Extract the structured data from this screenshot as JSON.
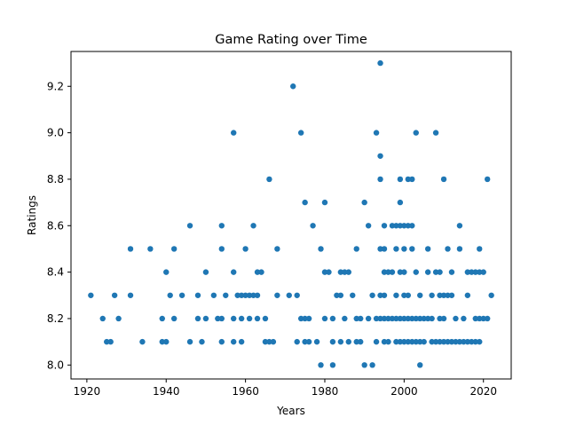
{
  "chart_data": {
    "type": "scatter",
    "title": "Game Rating over Time",
    "xlabel": "Years",
    "ylabel": "Ratings",
    "xlim": [
      1916,
      2027
    ],
    "ylim": [
      7.94,
      9.35
    ],
    "xticks": [
      1920,
      1940,
      1960,
      1980,
      2000,
      2020
    ],
    "yticks": [
      8.0,
      8.2,
      8.4,
      8.6,
      8.8,
      9.0,
      9.2
    ],
    "ytick_labels": [
      "8.0",
      "8.2",
      "8.4",
      "8.6",
      "8.8",
      "9.0",
      "9.2"
    ],
    "grid": false,
    "marker_color": "#1f77b4",
    "points": [
      [
        1921,
        8.3
      ],
      [
        1924,
        8.2
      ],
      [
        1925,
        8.1
      ],
      [
        1926,
        8.1
      ],
      [
        1927,
        8.3
      ],
      [
        1928,
        8.2
      ],
      [
        1931,
        8.5
      ],
      [
        1931,
        8.3
      ],
      [
        1934,
        8.1
      ],
      [
        1936,
        8.5
      ],
      [
        1939,
        8.2
      ],
      [
        1939,
        8.1
      ],
      [
        1940,
        8.1
      ],
      [
        1940,
        8.4
      ],
      [
        1941,
        8.3
      ],
      [
        1942,
        8.5
      ],
      [
        1942,
        8.2
      ],
      [
        1944,
        8.3
      ],
      [
        1946,
        8.6
      ],
      [
        1946,
        8.1
      ],
      [
        1948,
        8.3
      ],
      [
        1948,
        8.2
      ],
      [
        1949,
        8.1
      ],
      [
        1950,
        8.4
      ],
      [
        1950,
        8.2
      ],
      [
        1952,
        8.3
      ],
      [
        1953,
        8.2
      ],
      [
        1954,
        8.6
      ],
      [
        1954,
        8.5
      ],
      [
        1954,
        8.2
      ],
      [
        1954,
        8.1
      ],
      [
        1955,
        8.3
      ],
      [
        1957,
        9.0
      ],
      [
        1957,
        8.4
      ],
      [
        1957,
        8.2
      ],
      [
        1957,
        8.1
      ],
      [
        1958,
        8.3
      ],
      [
        1959,
        8.3
      ],
      [
        1959,
        8.2
      ],
      [
        1959,
        8.1
      ],
      [
        1960,
        8.5
      ],
      [
        1960,
        8.3
      ],
      [
        1961,
        8.3
      ],
      [
        1961,
        8.2
      ],
      [
        1962,
        8.6
      ],
      [
        1962,
        8.3
      ],
      [
        1963,
        8.4
      ],
      [
        1963,
        8.3
      ],
      [
        1963,
        8.2
      ],
      [
        1964,
        8.4
      ],
      [
        1965,
        8.2
      ],
      [
        1965,
        8.1
      ],
      [
        1966,
        8.8
      ],
      [
        1966,
        8.1
      ],
      [
        1967,
        8.1
      ],
      [
        1968,
        8.5
      ],
      [
        1968,
        8.3
      ],
      [
        1971,
        8.3
      ],
      [
        1972,
        9.2
      ],
      [
        1973,
        8.3
      ],
      [
        1973,
        8.1
      ],
      [
        1974,
        9.0
      ],
      [
        1974,
        8.2
      ],
      [
        1975,
        8.7
      ],
      [
        1975,
        8.2
      ],
      [
        1975,
        8.1
      ],
      [
        1976,
        8.2
      ],
      [
        1976,
        8.1
      ],
      [
        1977,
        8.6
      ],
      [
        1978,
        8.1
      ],
      [
        1979,
        8.5
      ],
      [
        1979,
        8.0
      ],
      [
        1980,
        8.7
      ],
      [
        1980,
        8.4
      ],
      [
        1980,
        8.2
      ],
      [
        1981,
        8.4
      ],
      [
        1982,
        8.2
      ],
      [
        1982,
        8.1
      ],
      [
        1982,
        8.0
      ],
      [
        1983,
        8.3
      ],
      [
        1984,
        8.4
      ],
      [
        1984,
        8.3
      ],
      [
        1984,
        8.1
      ],
      [
        1985,
        8.4
      ],
      [
        1985,
        8.2
      ],
      [
        1986,
        8.4
      ],
      [
        1986,
        8.1
      ],
      [
        1987,
        8.3
      ],
      [
        1988,
        8.5
      ],
      [
        1988,
        8.2
      ],
      [
        1988,
        8.1
      ],
      [
        1989,
        8.2
      ],
      [
        1989,
        8.1
      ],
      [
        1990,
        8.7
      ],
      [
        1990,
        8.0
      ],
      [
        1991,
        8.6
      ],
      [
        1991,
        8.2
      ],
      [
        1992,
        8.3
      ],
      [
        1992,
        8.0
      ],
      [
        1993,
        9.0
      ],
      [
        1993,
        8.2
      ],
      [
        1993,
        8.1
      ],
      [
        1994,
        9.3
      ],
      [
        1994,
        8.9
      ],
      [
        1994,
        8.8
      ],
      [
        1994,
        8.5
      ],
      [
        1994,
        8.3
      ],
      [
        1994,
        8.2
      ],
      [
        1995,
        8.6
      ],
      [
        1995,
        8.5
      ],
      [
        1995,
        8.4
      ],
      [
        1995,
        8.3
      ],
      [
        1995,
        8.2
      ],
      [
        1995,
        8.1
      ],
      [
        1996,
        8.4
      ],
      [
        1996,
        8.2
      ],
      [
        1996,
        8.1
      ],
      [
        1997,
        8.6
      ],
      [
        1997,
        8.4
      ],
      [
        1997,
        8.2
      ],
      [
        1998,
        8.6
      ],
      [
        1998,
        8.5
      ],
      [
        1998,
        8.3
      ],
      [
        1998,
        8.2
      ],
      [
        1998,
        8.1
      ],
      [
        1999,
        8.8
      ],
      [
        1999,
        8.7
      ],
      [
        1999,
        8.6
      ],
      [
        1999,
        8.4
      ],
      [
        1999,
        8.2
      ],
      [
        1999,
        8.1
      ],
      [
        2000,
        8.6
      ],
      [
        2000,
        8.5
      ],
      [
        2000,
        8.4
      ],
      [
        2000,
        8.3
      ],
      [
        2000,
        8.2
      ],
      [
        2000,
        8.1
      ],
      [
        2001,
        8.8
      ],
      [
        2001,
        8.6
      ],
      [
        2001,
        8.3
      ],
      [
        2001,
        8.2
      ],
      [
        2001,
        8.1
      ],
      [
        2002,
        8.8
      ],
      [
        2002,
        8.6
      ],
      [
        2002,
        8.5
      ],
      [
        2002,
        8.2
      ],
      [
        2002,
        8.1
      ],
      [
        2003,
        9.0
      ],
      [
        2003,
        8.4
      ],
      [
        2003,
        8.2
      ],
      [
        2003,
        8.1
      ],
      [
        2004,
        8.3
      ],
      [
        2004,
        8.2
      ],
      [
        2004,
        8.1
      ],
      [
        2004,
        8.0
      ],
      [
        2005,
        8.2
      ],
      [
        2005,
        8.1
      ],
      [
        2006,
        8.5
      ],
      [
        2006,
        8.4
      ],
      [
        2006,
        8.2
      ],
      [
        2007,
        8.3
      ],
      [
        2007,
        8.2
      ],
      [
        2007,
        8.1
      ],
      [
        2008,
        9.0
      ],
      [
        2008,
        8.4
      ],
      [
        2008,
        8.1
      ],
      [
        2009,
        8.4
      ],
      [
        2009,
        8.3
      ],
      [
        2009,
        8.2
      ],
      [
        2009,
        8.1
      ],
      [
        2010,
        8.8
      ],
      [
        2010,
        8.3
      ],
      [
        2010,
        8.2
      ],
      [
        2010,
        8.1
      ],
      [
        2011,
        8.5
      ],
      [
        2011,
        8.3
      ],
      [
        2011,
        8.1
      ],
      [
        2012,
        8.4
      ],
      [
        2012,
        8.3
      ],
      [
        2012,
        8.1
      ],
      [
        2013,
        8.2
      ],
      [
        2013,
        8.1
      ],
      [
        2014,
        8.6
      ],
      [
        2014,
        8.5
      ],
      [
        2014,
        8.1
      ],
      [
        2015,
        8.2
      ],
      [
        2015,
        8.1
      ],
      [
        2016,
        8.4
      ],
      [
        2016,
        8.3
      ],
      [
        2016,
        8.1
      ],
      [
        2017,
        8.4
      ],
      [
        2017,
        8.1
      ],
      [
        2018,
        8.4
      ],
      [
        2018,
        8.2
      ],
      [
        2018,
        8.1
      ],
      [
        2019,
        8.5
      ],
      [
        2019,
        8.4
      ],
      [
        2019,
        8.2
      ],
      [
        2019,
        8.1
      ],
      [
        2020,
        8.4
      ],
      [
        2020,
        8.2
      ],
      [
        2021,
        8.8
      ],
      [
        2021,
        8.2
      ],
      [
        2022,
        8.3
      ]
    ]
  }
}
